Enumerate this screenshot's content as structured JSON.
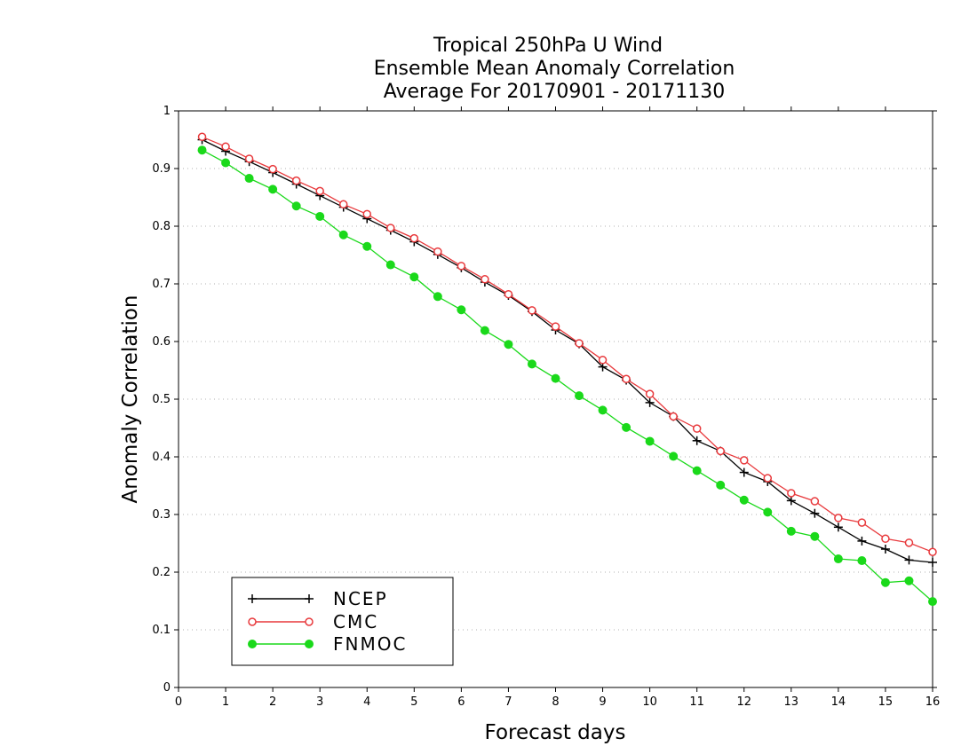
{
  "chart_data": {
    "type": "line",
    "title_lines": [
      "Tropical 250hPa U Wind",
      "Ensemble Mean Anomaly Correlation",
      "Average For 20170901 - 20171130"
    ],
    "xlabel": "Forecast days",
    "ylabel": "Anomaly Correlation",
    "xlim": [
      0,
      16
    ],
    "ylim": [
      0,
      1
    ],
    "xticks": [
      0,
      1,
      2,
      3,
      4,
      5,
      6,
      7,
      8,
      9,
      10,
      11,
      12,
      13,
      14,
      15,
      16
    ],
    "yticks": [
      0,
      0.1,
      0.2,
      0.3,
      0.4,
      0.5,
      0.6,
      0.7,
      0.8,
      0.9,
      1
    ],
    "ytick_labels": [
      "0",
      "0.1",
      "0.2",
      "0.3",
      "0.4",
      "0.5",
      "0.6",
      "0.7",
      "0.8",
      "0.9",
      "1"
    ],
    "grid": "horizontal dotted",
    "legend_position": "bottom-left",
    "x": [
      0.5,
      1,
      1.5,
      2,
      2.5,
      3,
      3.5,
      4,
      4.5,
      5,
      5.5,
      6,
      6.5,
      7,
      7.5,
      8,
      8.5,
      9,
      9.5,
      10,
      10.5,
      11,
      11.5,
      12,
      12.5,
      13,
      13.5,
      14,
      14.5,
      15,
      15.5,
      16
    ],
    "series": [
      {
        "name": "NCEP",
        "color": "#000000",
        "marker": "plus",
        "values": [
          0.95,
          0.93,
          0.912,
          0.893,
          0.873,
          0.853,
          0.833,
          0.813,
          0.793,
          0.773,
          0.751,
          0.728,
          0.703,
          0.68,
          0.652,
          0.62,
          0.596,
          0.556,
          0.533,
          0.494,
          0.47,
          0.428,
          0.41,
          0.373,
          0.357,
          0.324,
          0.302,
          0.278,
          0.254,
          0.24,
          0.221,
          0.217
        ]
      },
      {
        "name": "CMC",
        "color": "#e8393c",
        "marker": "open-circle",
        "values": [
          0.955,
          0.938,
          0.917,
          0.899,
          0.879,
          0.861,
          0.838,
          0.821,
          0.797,
          0.779,
          0.756,
          0.731,
          0.708,
          0.682,
          0.654,
          0.626,
          0.597,
          0.568,
          0.535,
          0.509,
          0.47,
          0.449,
          0.41,
          0.394,
          0.363,
          0.337,
          0.323,
          0.294,
          0.286,
          0.258,
          0.251,
          0.235
        ]
      },
      {
        "name": "FNMOC",
        "color": "#1ad91a",
        "marker": "filled-circle",
        "values": [
          0.932,
          0.91,
          0.883,
          0.864,
          0.835,
          0.817,
          0.785,
          0.765,
          0.733,
          0.712,
          0.678,
          0.655,
          0.619,
          0.595,
          0.561,
          0.536,
          0.506,
          0.481,
          0.451,
          0.427,
          0.401,
          0.376,
          0.351,
          0.325,
          0.304,
          0.271,
          0.262,
          0.223,
          0.22,
          0.182,
          0.185,
          0.149
        ]
      }
    ]
  }
}
